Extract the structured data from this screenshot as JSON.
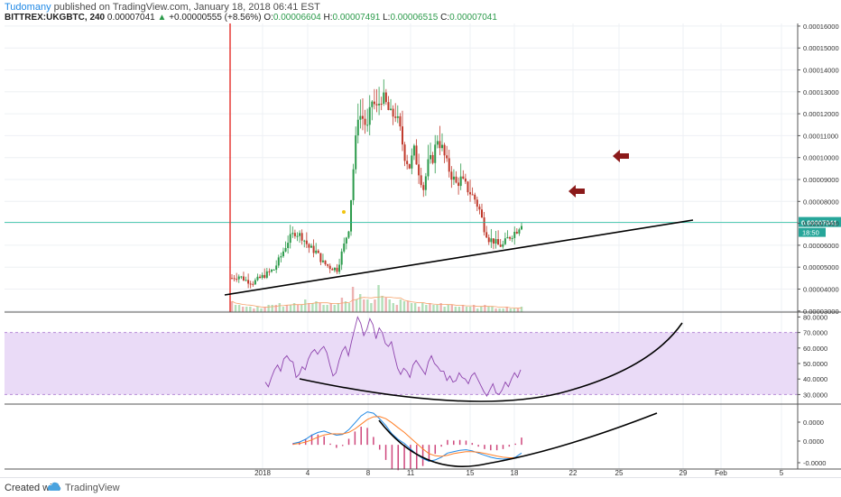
{
  "header": {
    "publisher": "Tudomany",
    "published_text": "published on TradingView.com, January 18, 2018 06:41 EST",
    "symbol": "BITTREX:UKGBTC, 240",
    "last": "0.00007041",
    "change": "+0.00000555 (+8.56%)",
    "o_label": "O:",
    "o_value": "0.00006604",
    "h_label": "H:",
    "h_value": "0.00007491",
    "l_label": "L:",
    "l_value": "0.00006515",
    "c_label": "C:",
    "c_value": "0.00007041"
  },
  "price_badge": "0.00007041",
  "time_badge": "18:50",
  "footer": {
    "created": "Created with",
    "brand": "TradingView"
  },
  "colors": {
    "up": "#2b9a4a",
    "down": "#c0392b",
    "rsi": "#8e44ad",
    "rsi_band": "#eadbf7",
    "macd": "#1e88e5",
    "signal": "#ff7f27",
    "hist": "#c2185b",
    "arrow": "#8b1a1a",
    "cursor_line": "#e53935",
    "price_line": "#1abc9c",
    "badge_bg": "#26a69a"
  },
  "chart_data": [
    {
      "type": "candlestick",
      "title": "BITTREX:UKGBTC, 240",
      "yticks": [
        "0.00016000",
        "0.00015000",
        "0.00014000",
        "0.00013000",
        "0.00012000",
        "0.00011000",
        "0.00010000",
        "0.00009000",
        "0.00008000",
        "0.00007000",
        "0.00006000",
        "0.00005000",
        "0.00004000",
        "0.00003000"
      ],
      "ylim": [
        2.95e-05,
        0.0001612
      ],
      "xticks": [
        "2018",
        "4",
        "8",
        "11",
        "15",
        "18",
        "22",
        "25",
        "29",
        "Feb",
        "5"
      ],
      "close_path": [
        [
          0,
          4.5e-05
        ],
        [
          3,
          4.6e-05
        ],
        [
          6,
          4.4e-05
        ],
        [
          9,
          4.3e-05
        ],
        [
          12,
          4.5e-05
        ],
        [
          15,
          4.7e-05
        ],
        [
          18,
          4.9e-05
        ],
        [
          21,
          5.5e-05
        ],
        [
          24,
          6.2e-05
        ],
        [
          27,
          6.6e-05
        ],
        [
          30,
          6.4e-05
        ],
        [
          33,
          5.9e-05
        ],
        [
          36,
          5.7e-05
        ],
        [
          39,
          5.2e-05
        ],
        [
          42,
          5e-05
        ],
        [
          45,
          4.9e-05
        ],
        [
          48,
          6e-05
        ],
        [
          50,
          6.8e-05
        ],
        [
          52,
          9.5e-05
        ],
        [
          54,
          0.00012
        ],
        [
          56,
          0.000118
        ],
        [
          58,
          0.000113
        ],
        [
          60,
          0.000126
        ],
        [
          62,
          0.000122
        ],
        [
          64,
          0.000128
        ],
        [
          66,
          0.000124
        ],
        [
          68,
          0.000119
        ],
        [
          70,
          0.00012
        ],
        [
          72,
          0.000112
        ],
        [
          74,
          0.000101
        ],
        [
          76,
          9.6e-05
        ],
        [
          78,
          0.000103
        ],
        [
          80,
          9.4e-05
        ],
        [
          82,
          8.6e-05
        ],
        [
          84,
          9.7e-05
        ],
        [
          86,
          0.0001
        ],
        [
          88,
          0.000109
        ],
        [
          90,
          0.000104
        ],
        [
          92,
          9.7e-05
        ],
        [
          94,
          9.2e-05
        ],
        [
          96,
          8.8e-05
        ],
        [
          98,
          9e-05
        ],
        [
          100,
          8.7e-05
        ],
        [
          102,
          8.4e-05
        ],
        [
          104,
          8.1e-05
        ],
        [
          106,
          7.6e-05
        ],
        [
          108,
          6.8e-05
        ],
        [
          110,
          6.3e-05
        ],
        [
          112,
          6.2e-05
        ],
        [
          114,
          6e-05
        ],
        [
          116,
          6e-05
        ],
        [
          118,
          6.3e-05
        ],
        [
          120,
          6.5e-05
        ],
        [
          122,
          6.7e-05
        ],
        [
          124,
          7.041e-05
        ]
      ],
      "volume": [
        6,
        4,
        4,
        3,
        3,
        3,
        2,
        3,
        2,
        3,
        4,
        4,
        4,
        5,
        3,
        4,
        4,
        5,
        4,
        4,
        7,
        5,
        5,
        6,
        5,
        4,
        4,
        5,
        4,
        5,
        8,
        6,
        5,
        14,
        7,
        10,
        7,
        7,
        5,
        7,
        15,
        9,
        8,
        7,
        5,
        4,
        7,
        6,
        6,
        5,
        5,
        3,
        5,
        4,
        5,
        4,
        4,
        5,
        3,
        4,
        4,
        3,
        3,
        4,
        3,
        3,
        4,
        2,
        3,
        4,
        3,
        3,
        2,
        2,
        2,
        3,
        2,
        2,
        2,
        3
      ],
      "current_price": 7.041e-05
    },
    {
      "type": "line",
      "name": "RSI",
      "yticks": [
        "80.0000",
        "70.0000",
        "60.0000",
        "50.0000",
        "40.0000",
        "30.0000"
      ],
      "ylim": [
        25,
        82
      ],
      "band": [
        30,
        70
      ],
      "values": [
        38,
        35,
        41,
        46,
        49,
        45,
        53,
        55,
        52,
        51,
        41,
        43,
        48,
        46,
        53,
        57,
        59,
        56,
        59,
        61,
        57,
        49,
        42,
        44,
        52,
        58,
        61,
        55,
        64,
        72,
        80,
        76,
        68,
        72,
        79,
        75,
        66,
        73,
        70,
        63,
        61,
        64,
        55,
        47,
        43,
        47,
        45,
        41,
        49,
        52,
        49,
        46,
        43,
        51,
        55,
        50,
        48,
        45,
        45,
        39,
        42,
        38,
        39,
        44,
        41,
        40,
        37,
        42,
        44,
        40,
        36,
        32,
        29,
        33,
        37,
        31,
        30,
        33,
        38,
        35,
        40,
        44,
        41,
        46
      ]
    },
    {
      "type": "line",
      "name": "MACD",
      "yticks": [
        "0.0000",
        "0.0000",
        "-0.0000"
      ],
      "series": [
        {
          "name": "macd",
          "values": [
            0.05,
            0.1,
            0.2,
            0.35,
            0.45,
            0.5,
            0.42,
            0.35,
            0.38,
            0.55,
            0.8,
            1.05,
            1.2,
            1.15,
            0.95,
            0.7,
            0.4,
            0.2,
            0.05,
            -0.15,
            -0.35,
            -0.5,
            -0.6,
            -0.55,
            -0.45,
            -0.3,
            -0.25,
            -0.2,
            -0.18,
            -0.22,
            -0.3,
            -0.38,
            -0.45,
            -0.5,
            -0.52,
            -0.5,
            -0.45,
            -0.3
          ]
        },
        {
          "name": "signal",
          "values": [
            0.02,
            0.05,
            0.1,
            0.18,
            0.28,
            0.36,
            0.4,
            0.4,
            0.4,
            0.45,
            0.58,
            0.75,
            0.92,
            1.02,
            1.03,
            0.95,
            0.8,
            0.62,
            0.45,
            0.25,
            0.05,
            -0.15,
            -0.32,
            -0.4,
            -0.42,
            -0.38,
            -0.32,
            -0.28,
            -0.25,
            -0.25,
            -0.27,
            -0.31,
            -0.36,
            -0.41,
            -0.45,
            -0.47,
            -0.47,
            -0.42
          ]
        }
      ]
    }
  ]
}
